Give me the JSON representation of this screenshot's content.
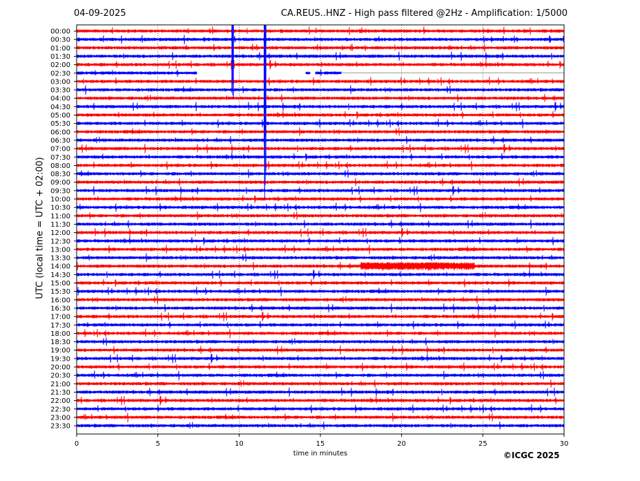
{
  "header": {
    "date": "04-09-2025",
    "title": "CA.REUS..HNZ - High pass filtered @2Hz - Amplification: 1/5000"
  },
  "credit": "©ICGC 2025",
  "chart_data": {
    "type": "line",
    "title": "CA.REUS..HNZ - High pass filtered @2Hz - Amplification: 1/5000",
    "xlabel": "time in minutes",
    "ylabel": "UTC (local time = UTC + 02:00)",
    "xlim": [
      0,
      30
    ],
    "x_ticks": [
      "0",
      "5",
      "10",
      "15",
      "20",
      "25",
      "30"
    ],
    "x_tick_values": [
      0,
      5,
      10,
      15,
      20,
      25,
      30
    ],
    "grid": "vertical dotted",
    "rows": [
      "00:00",
      "00:30",
      "01:00",
      "01:30",
      "02:00",
      "02:30",
      "03:00",
      "03:30",
      "04:00",
      "04:30",
      "05:00",
      "05:30",
      "06:00",
      "06:30",
      "07:00",
      "07:30",
      "08:00",
      "08:30",
      "09:00",
      "09:30",
      "10:00",
      "10:30",
      "11:00",
      "11:30",
      "12:00",
      "12:30",
      "13:00",
      "13:30",
      "14:00",
      "14:30",
      "15:00",
      "15:30",
      "16:00",
      "16:30",
      "17:00",
      "17:30",
      "18:00",
      "18:30",
      "19:00",
      "19:30",
      "20:00",
      "20:30",
      "21:00",
      "21:30",
      "22:00",
      "22:30",
      "23:00",
      "23:30"
    ],
    "trace_colors": [
      "#ff0000",
      "#0000ff"
    ],
    "events": [
      {
        "row": "00:00",
        "minute": 9.6,
        "note": "large spike spanning rows 00:00 to 03:00"
      },
      {
        "row": "00:00",
        "minute": 11.6,
        "note": "large spike spanning rows 00:00 to 10:00"
      },
      {
        "row": "14:00",
        "minute": 21.0,
        "note": "sustained high-amplitude band from ~18 to ~25 min"
      }
    ],
    "gaps": [
      {
        "row": "02:30",
        "from": 7.4,
        "to": 14.1
      },
      {
        "row": "02:30",
        "from": 14.4,
        "to": 14.7
      },
      {
        "row": "02:30",
        "from": 16.3,
        "to": 30
      }
    ]
  }
}
